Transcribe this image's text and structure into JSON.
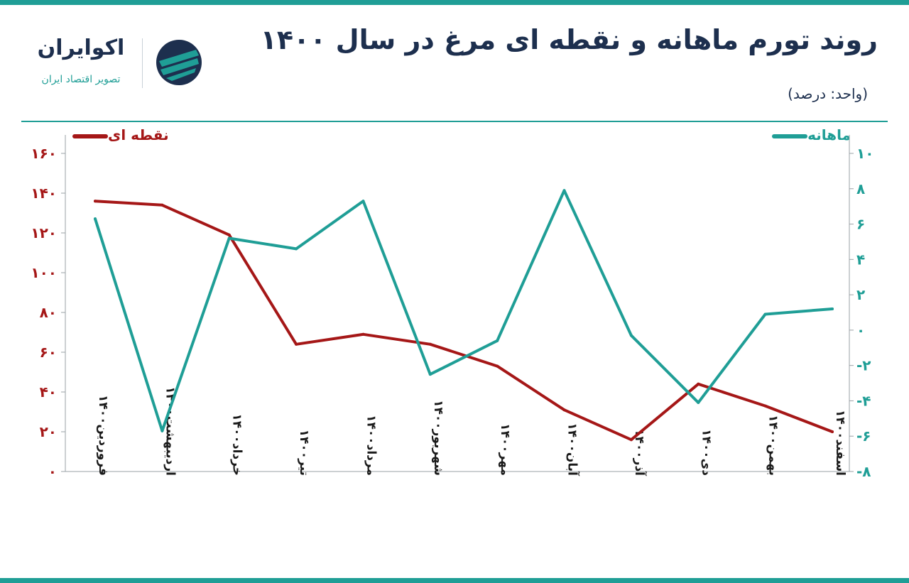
{
  "header": {
    "title": "روند تورم ماهانه و نقطه ای مرغ در سال ۱۴۰۰",
    "unit": "(واحد: درصد)"
  },
  "logo": {
    "name": "اکوایران",
    "tagline": "تصویر اقتصاد ایران",
    "icon": "ecoiran-logo-icon"
  },
  "colors": {
    "accent": "#1f9e96",
    "point_series": "#a51717",
    "title": "#1d2f4e"
  },
  "chart_data": {
    "type": "line",
    "title": "روند تورم ماهانه و نقطه ای مرغ در سال ۱۴۰۰",
    "categories": [
      "فروردین۱۴۰۰",
      "اردیبهشت۱۴۰۰",
      "خرداد۱۴۰۰",
      "تیر۱۴۰۰",
      "مرداد۱۴۰۰",
      "شهریور۱۴۰۰",
      "مهر۱۴۰۰",
      "آبان۱۴۰۰",
      "آذر۱۴۰۰",
      "دی۱۴۰۰",
      "بهمن۱۴۰۰",
      "اسفند۱۴۰۰"
    ],
    "series": [
      {
        "name": "نقطه ای",
        "axis": "left",
        "color": "#a51717",
        "values": [
          136,
          134,
          119,
          64,
          69,
          64,
          53,
          31,
          16,
          44,
          33,
          20
        ]
      },
      {
        "name": "ماهانه",
        "axis": "right",
        "color": "#1f9e96",
        "values": [
          6.3,
          -5.7,
          5.2,
          4.6,
          7.3,
          -2.5,
          -0.6,
          7.9,
          -0.3,
          -4.1,
          0.9,
          1.2
        ]
      }
    ],
    "y_left": {
      "min": 0,
      "max": 160,
      "ticks": [
        "۰",
        "۲۰",
        "۴۰",
        "۶۰",
        "۸۰",
        "۱۰۰",
        "۱۲۰",
        "۱۴۰",
        "۱۶۰"
      ]
    },
    "y_right": {
      "min": -8,
      "max": 10,
      "ticks": [
        "-۸",
        "-۶",
        "-۴",
        "-۲",
        "۰",
        "۲",
        "۴",
        "۶",
        "۸",
        "۱۰"
      ]
    },
    "grid": false,
    "legend": "top"
  }
}
